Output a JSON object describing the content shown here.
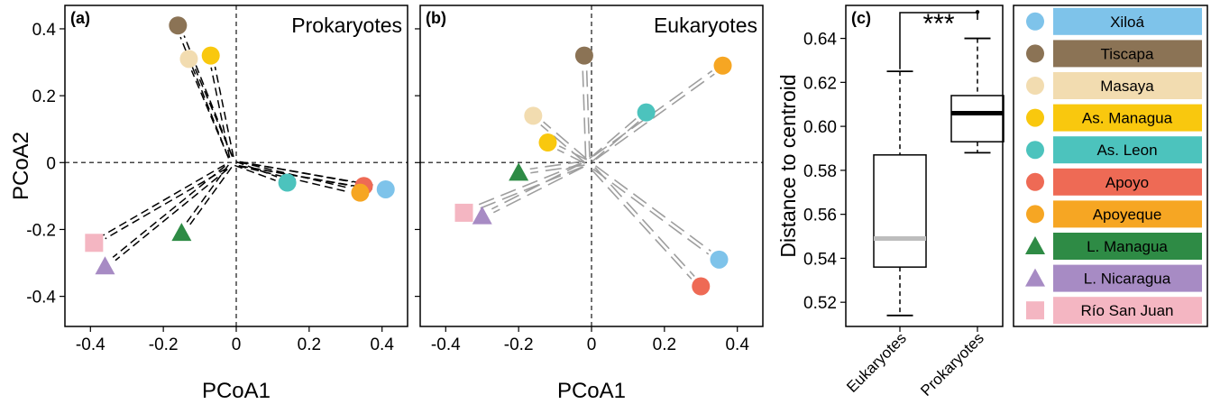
{
  "chart_data": [
    {
      "id": "a",
      "type": "scatter",
      "panel_label": "(a)",
      "title": "Prokaryotes",
      "xlabel": "PCoA1",
      "ylabel": "PCoA2",
      "xlim": [
        -0.47,
        0.47
      ],
      "ylim": [
        -0.49,
        0.47
      ],
      "xticks": [
        -0.4,
        -0.2,
        0,
        0.2,
        0.4
      ],
      "xtick_labels": [
        "-0.4",
        "-0.2",
        "0",
        "0.2",
        "0.4"
      ],
      "yticks": [
        0.4,
        0.2,
        0,
        -0.2,
        -0.4
      ],
      "ytick_labels": [
        "0.4",
        "0.2",
        "0",
        "-0.2",
        "-0.4"
      ],
      "centroid": [
        -0.01,
        0.0
      ],
      "points": [
        {
          "site": "Xiloá",
          "x": 0.41,
          "y": -0.08
        },
        {
          "site": "Tiscapa",
          "x": -0.16,
          "y": 0.41
        },
        {
          "site": "Masaya",
          "x": -0.13,
          "y": 0.31
        },
        {
          "site": "As. Managua",
          "x": -0.07,
          "y": 0.32
        },
        {
          "site": "As. Leon",
          "x": 0.14,
          "y": -0.06
        },
        {
          "site": "Apoyo",
          "x": 0.35,
          "y": -0.07
        },
        {
          "site": "Apoyeque",
          "x": 0.34,
          "y": -0.09
        },
        {
          "site": "L. Managua",
          "x": -0.15,
          "y": -0.21
        },
        {
          "site": "L. Nicaragua",
          "x": -0.36,
          "y": -0.31
        },
        {
          "site": "Río San Juan",
          "x": -0.39,
          "y": -0.24
        }
      ]
    },
    {
      "id": "b",
      "type": "scatter",
      "panel_label": "(b)",
      "title": "Eukaryotes",
      "xlabel": "PCoA1",
      "ylabel": "",
      "xlim": [
        -0.47,
        0.47
      ],
      "ylim": [
        -0.49,
        0.47
      ],
      "xticks": [
        -0.4,
        -0.2,
        0,
        0.2,
        0.4
      ],
      "xtick_labels": [
        "-0.4",
        "-0.2",
        "0",
        "0.2",
        "0.4"
      ],
      "yticks": [
        0.4,
        0.2,
        0,
        -0.2,
        -0.4
      ],
      "ytick_labels": [],
      "centroid": [
        -0.01,
        0.0
      ],
      "points": [
        {
          "site": "Xiloá",
          "x": 0.35,
          "y": -0.29
        },
        {
          "site": "Tiscapa",
          "x": -0.02,
          "y": 0.32
        },
        {
          "site": "Masaya",
          "x": -0.16,
          "y": 0.14
        },
        {
          "site": "As. Managua",
          "x": -0.12,
          "y": 0.06
        },
        {
          "site": "As. Leon",
          "x": 0.15,
          "y": 0.15
        },
        {
          "site": "Apoyo",
          "x": 0.3,
          "y": -0.37
        },
        {
          "site": "Apoyeque",
          "x": 0.36,
          "y": 0.29
        },
        {
          "site": "L. Managua",
          "x": -0.2,
          "y": -0.03
        },
        {
          "site": "L. Nicaragua",
          "x": -0.3,
          "y": -0.16
        },
        {
          "site": "Río San Juan",
          "x": -0.35,
          "y": -0.15
        }
      ]
    },
    {
      "id": "c",
      "type": "box",
      "panel_label": "(c)",
      "ylabel": "Distance to centroid",
      "ylim": [
        0.509,
        0.655
      ],
      "yticks": [
        0.52,
        0.54,
        0.56,
        0.58,
        0.6,
        0.62,
        0.64
      ],
      "ytick_labels": [
        "0.52",
        "0.54",
        "0.56",
        "0.58",
        "0.60",
        "0.62",
        "0.64"
      ],
      "categories": [
        "Eukaryotes",
        "Prokaryotes"
      ],
      "boxes": [
        {
          "name": "Eukaryotes",
          "min": 0.514,
          "q1": 0.536,
          "median": 0.549,
          "q3": 0.587,
          "max": 0.625,
          "outliers": [],
          "median_color": "#bdbdbd"
        },
        {
          "name": "Prokaryotes",
          "min": 0.588,
          "q1": 0.593,
          "median": 0.606,
          "q3": 0.614,
          "max": 0.64,
          "outliers": [
            0.652
          ],
          "median_color": "#000000"
        }
      ],
      "significance": "***"
    }
  ],
  "legend": [
    {
      "label": "Xiloá",
      "marker": "circle",
      "color": "#7ec3ea"
    },
    {
      "label": "Tiscapa",
      "marker": "circle",
      "color": "#8b7355"
    },
    {
      "label": "Masaya",
      "marker": "circle",
      "color": "#f2dcb0"
    },
    {
      "label": "As. Managua",
      "marker": "circle",
      "color": "#f9c80e"
    },
    {
      "label": "As. Leon",
      "marker": "circle",
      "color": "#4cc3bd"
    },
    {
      "label": "Apoyo",
      "marker": "circle",
      "color": "#ee6a55"
    },
    {
      "label": "Apoyeque",
      "marker": "circle",
      "color": "#f6a623"
    },
    {
      "label": "L. Managua",
      "marker": "triangle",
      "color": "#2e8b45"
    },
    {
      "label": "L. Nicaragua",
      "marker": "triangle",
      "color": "#a78bc4"
    },
    {
      "label": "Río San Juan",
      "marker": "square",
      "color": "#f4b6c2"
    }
  ]
}
